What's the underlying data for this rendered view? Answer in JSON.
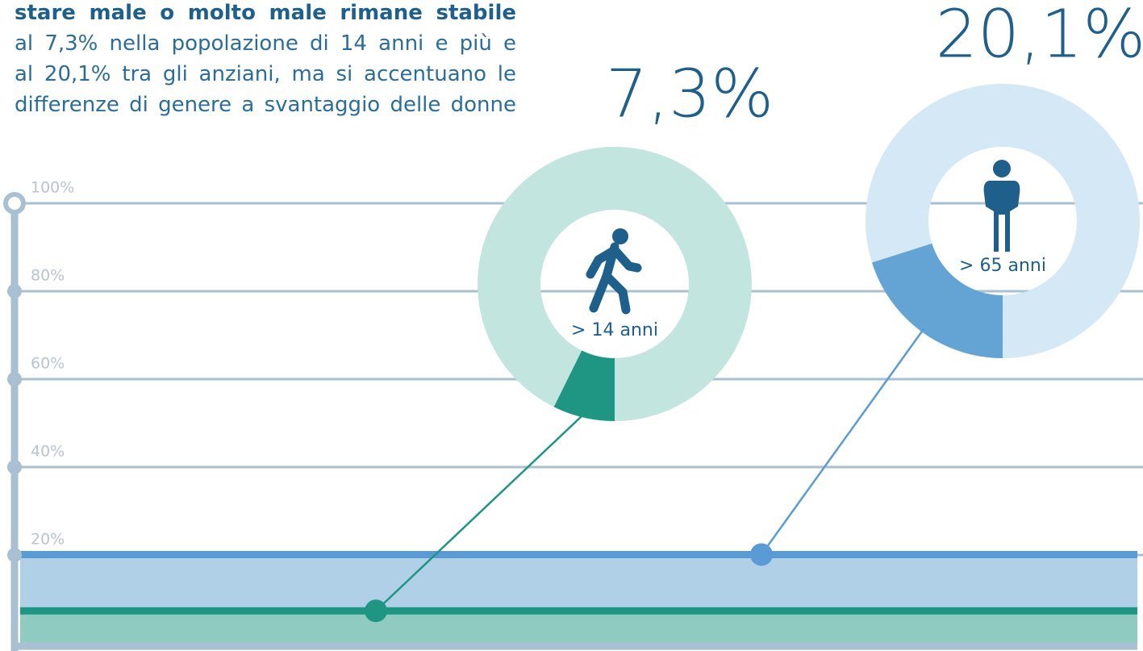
{
  "chart_data": {
    "type": "band",
    "text_lines": [
      "stare male o molto male rimane stabile",
      "al 7,3% nella popolazione di 14 anni e più e",
      "al 20,1% tra gli anziani, ma si accentuano le",
      "differenze di genere a svantaggio delle donne"
    ],
    "ylim": [
      0,
      100
    ],
    "yticks": [
      {
        "value": 20,
        "label": "20%"
      },
      {
        "value": 40,
        "label": "40%"
      },
      {
        "value": 60,
        "label": "60%"
      },
      {
        "value": 80,
        "label": "80%"
      },
      {
        "value": 100,
        "label": "100%"
      }
    ],
    "grid": true,
    "series": [
      {
        "name": "> 14 anni",
        "values": [
          7.3
        ],
        "value_labels": [
          "7,3%"
        ],
        "color": "#1f9683",
        "fill_color": "#8fcbc0",
        "ring_color": "#c3e5df"
      },
      {
        "name": "> 65 anni",
        "values": [
          20.1
        ],
        "value_labels": [
          "20,1%"
        ],
        "color": "#5b9bd5",
        "fill_color": "#b0d0e8",
        "ring_color": "#d5e8f5"
      }
    ]
  }
}
